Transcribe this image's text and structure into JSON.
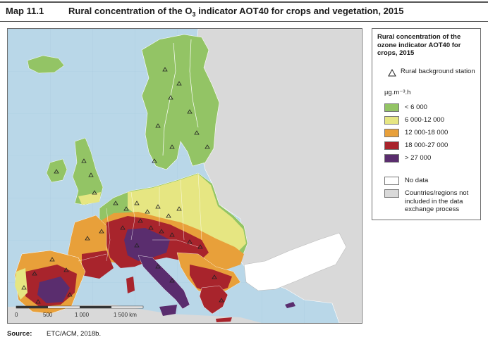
{
  "header": {
    "map_number": "Map 11.1",
    "title_prefix": "Rural concentration of the O",
    "title_sub": "3",
    "title_suffix": " indicator AOT40 for crops and vegetation, 2015"
  },
  "legend": {
    "title": "Rural concentration of the ozone indicator AOT40 for crops, 2015",
    "station_label": "Rural background station",
    "units": "µg.m⁻³.h",
    "classes": [
      {
        "label": "< 6 000",
        "color": "#93c465"
      },
      {
        "label": "6 000-12 000",
        "color": "#e6e682"
      },
      {
        "label": "12 000-18 000",
        "color": "#e8a03a"
      },
      {
        "label": "18 000-27 000",
        "color": "#a8242c"
      },
      {
        "label": "> 27 000",
        "color": "#5a2d6e"
      }
    ],
    "no_data_label": "No data",
    "no_data_color": "#ffffff",
    "not_included_label": "Countries/regions not included in the data exchange process",
    "not_included_color": "#d9d9d9"
  },
  "map": {
    "sea_color": "#b9d7e8",
    "scale_labels": [
      "0",
      "500",
      "1 000",
      "1 500 km"
    ]
  },
  "source": {
    "label": "Source:",
    "text": "ETC/ACM, 2018b."
  }
}
